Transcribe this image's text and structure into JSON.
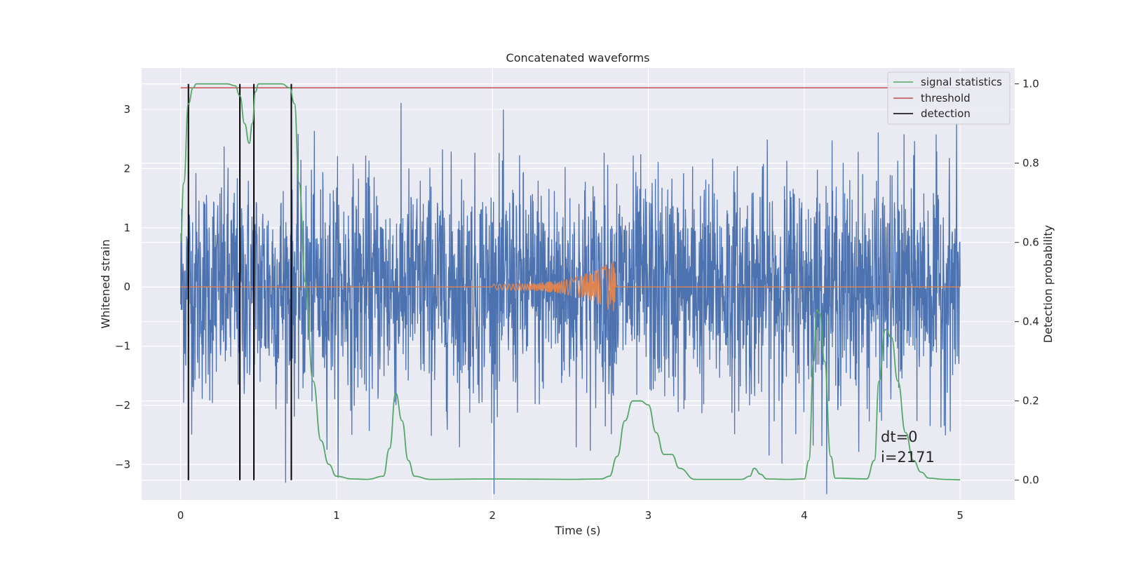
{
  "chart_data": {
    "type": "line",
    "title": "Concatenated waveforms",
    "xlabel": "Time (s)",
    "ylabel": "Whitened strain",
    "y2label": "Detection probability",
    "xlim": [
      -0.25,
      5.35
    ],
    "ylim": [
      -3.6,
      3.7
    ],
    "y2lim": [
      -0.05,
      1.04
    ],
    "x_ticks": [
      0,
      1,
      2,
      3,
      4,
      5
    ],
    "y_ticks": [
      -3,
      -2,
      -1,
      0,
      1,
      2,
      3
    ],
    "y2_ticks": [
      0.0,
      0.2,
      0.4,
      0.6,
      0.8,
      1.0
    ],
    "y2_tick_labels": [
      "0.0",
      "0.2",
      "0.4",
      "0.6",
      "0.8",
      "1.0"
    ],
    "y_tick_labels": [
      "−3",
      "−2",
      "−1",
      "0",
      "1",
      "2",
      "3"
    ],
    "grid": true,
    "legend_position": "top-right",
    "series": [
      {
        "name": "",
        "color": "#4c72b0",
        "axis": "left",
        "description_points": {
          "x_range": [
            0,
            5
          ],
          "amplitude_rms": 0.9,
          "peak": 3.4
        }
      },
      {
        "name": "",
        "color": "#dd8452",
        "axis": "left",
        "x": [
          0,
          2.0,
          2.3,
          2.6,
          2.75,
          2.78,
          2.79,
          5.0
        ],
        "envelope": [
          0,
          0.05,
          0.1,
          0.2,
          0.35,
          0.45,
          0,
          0
        ]
      },
      {
        "name": "signal statistics",
        "color": "#55a868",
        "axis": "right",
        "x": [
          0.0,
          0.02,
          0.05,
          0.08,
          0.1,
          0.15,
          0.3,
          0.35,
          0.38,
          0.41,
          0.44,
          0.46,
          0.48,
          0.5,
          0.55,
          0.65,
          0.7,
          0.73,
          0.76,
          0.8,
          0.85,
          0.9,
          0.95,
          1.0,
          1.1,
          1.2,
          1.3,
          1.34,
          1.38,
          1.42,
          1.46,
          1.5,
          1.6,
          2.0,
          2.5,
          2.7,
          2.75,
          2.8,
          2.85,
          2.9,
          2.95,
          3.0,
          3.05,
          3.1,
          3.15,
          3.2,
          3.3,
          3.6,
          3.65,
          3.68,
          3.72,
          3.76,
          3.9,
          4.0,
          4.03,
          4.06,
          4.08,
          4.1,
          4.13,
          4.17,
          4.2,
          4.4,
          4.45,
          4.48,
          4.52,
          4.56,
          4.6,
          4.65,
          4.7,
          4.75,
          4.8,
          4.9,
          5.0
        ],
        "values": [
          0.6,
          0.75,
          0.95,
          0.99,
          1.0,
          1.0,
          1.0,
          0.995,
          0.97,
          0.9,
          0.85,
          0.9,
          0.98,
          1.0,
          1.0,
          1.0,
          0.99,
          0.95,
          0.75,
          0.5,
          0.25,
          0.1,
          0.04,
          0.01,
          0.003,
          0.002,
          0.01,
          0.08,
          0.22,
          0.15,
          0.05,
          0.01,
          0.002,
          0.003,
          0.002,
          0.003,
          0.01,
          0.06,
          0.15,
          0.2,
          0.2,
          0.19,
          0.12,
          0.065,
          0.065,
          0.03,
          0.002,
          0.002,
          0.01,
          0.03,
          0.015,
          0.003,
          0.002,
          0.003,
          0.05,
          0.3,
          0.43,
          0.42,
          0.3,
          0.06,
          0.005,
          0.003,
          0.05,
          0.25,
          0.38,
          0.36,
          0.25,
          0.12,
          0.05,
          0.02,
          0.005,
          0.002,
          0.001
        ]
      },
      {
        "name": "threshold",
        "color": "#c44e52",
        "axis": "right",
        "x": [
          0,
          5
        ],
        "values": [
          0.99,
          0.99
        ]
      },
      {
        "name": "detection",
        "color": "#000000",
        "axis": "right",
        "vlines_x": [
          0.05,
          0.38,
          0.47,
          0.71
        ],
        "vline_range": [
          0.0,
          1.0
        ]
      }
    ],
    "annotations": [
      "dt=0",
      "i=2171"
    ]
  }
}
